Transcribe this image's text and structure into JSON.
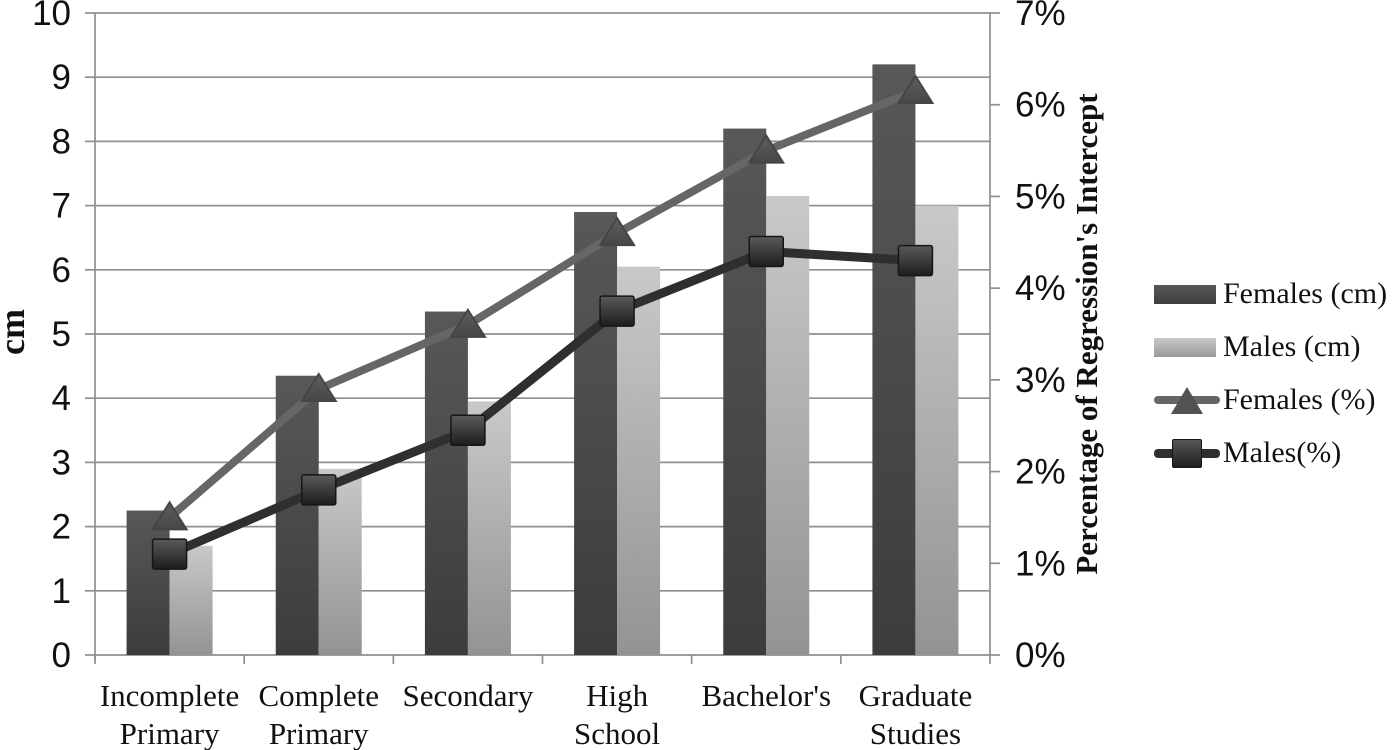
{
  "chart_data": {
    "type": "combo-bar-line",
    "title": "",
    "categories": [
      "Incomplete Primary",
      "Complete Primary",
      "Secondary",
      "High School",
      "Bachelor's",
      "Graduate Studies"
    ],
    "series": [
      {
        "name": "Females (cm)",
        "type": "bar",
        "axis": "left",
        "values": [
          2.25,
          4.35,
          5.35,
          6.9,
          8.2,
          9.2
        ]
      },
      {
        "name": "Males (cm)",
        "type": "bar",
        "axis": "left",
        "values": [
          1.7,
          2.9,
          3.95,
          6.05,
          7.15,
          7.0
        ]
      },
      {
        "name": "Females (%)",
        "type": "line",
        "marker": "triangle",
        "axis": "right",
        "values": [
          1.5,
          2.9,
          3.6,
          4.6,
          5.5,
          6.15
        ]
      },
      {
        "name": "Males(%)",
        "type": "line",
        "marker": "square",
        "axis": "right",
        "values": [
          1.1,
          1.8,
          2.45,
          3.75,
          4.4,
          4.3
        ]
      }
    ],
    "left_axis": {
      "label": "cm",
      "min": 0,
      "max": 10,
      "step": 1,
      "tick_labels": [
        "0",
        "1",
        "2",
        "3",
        "4",
        "5",
        "6",
        "7",
        "8",
        "9",
        "10"
      ]
    },
    "right_axis": {
      "label": "Percentage of Regression's Intercept",
      "min": 0,
      "max": 7,
      "step": 1,
      "tick_labels": [
        "0%",
        "1%",
        "2%",
        "3%",
        "4%",
        "5%",
        "6%",
        "7%"
      ]
    },
    "legend": {
      "position": "right",
      "items": [
        "Females (cm)",
        "Males (cm)",
        "Females (%)",
        "Males(%)"
      ]
    },
    "grid": true,
    "colors": {
      "background": "#ffffff",
      "grid": "#8f8f8f",
      "text": "#111111",
      "females_bar_top": "#585858",
      "females_bar_bottom": "#3c3c3c",
      "males_bar_top": "#c9c9c9",
      "males_bar_bottom": "#939393",
      "females_line": "#666666",
      "females_marker": "#525252",
      "females_marker_edge": "#454545",
      "males_line": "#2f2f2f",
      "males_marker_top": "#5a5a5a",
      "males_marker_bottom": "#1d1d1d",
      "males_marker_edge": "#161616"
    }
  }
}
